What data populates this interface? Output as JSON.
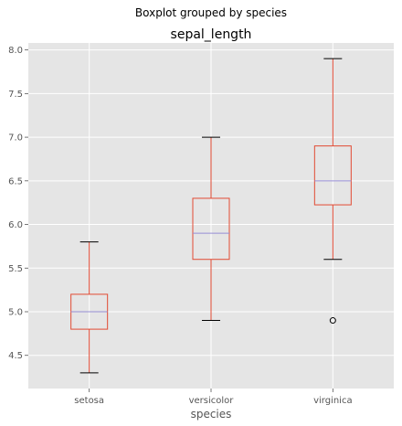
{
  "chart_data": {
    "type": "boxplot",
    "suptitle": "Boxplot grouped by species",
    "title": "sepal_length",
    "xlabel": "species",
    "ylabel": "",
    "categories": [
      "setosa",
      "versicolor",
      "virginica"
    ],
    "boxes": [
      {
        "category": "setosa",
        "whisker_low": 4.3,
        "q1": 4.8,
        "median": 5.0,
        "q3": 5.2,
        "whisker_high": 5.8,
        "outliers": []
      },
      {
        "category": "versicolor",
        "whisker_low": 4.9,
        "q1": 5.6,
        "median": 5.9,
        "q3": 6.3,
        "whisker_high": 7.0,
        "outliers": []
      },
      {
        "category": "virginica",
        "whisker_low": 5.6,
        "q1": 6.225,
        "median": 6.5,
        "q3": 6.9,
        "whisker_high": 7.9,
        "outliers": [
          4.9
        ]
      }
    ],
    "ylim": [
      4.12,
      8.08
    ],
    "yticks": [
      "4.5",
      "5.0",
      "5.5",
      "6.0",
      "6.5",
      "7.0",
      "7.5",
      "8.0"
    ],
    "grid": true,
    "colors": {
      "background": "#E5E5E5",
      "grid": "#FFFFFF",
      "box": "#E24A33",
      "median": "#8EBA42",
      "median_line": "#988ED5",
      "whisker_cap": "#000000",
      "outlier": "#000000"
    }
  }
}
